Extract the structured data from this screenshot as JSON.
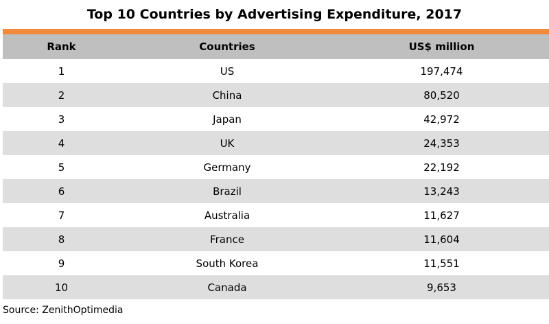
{
  "title": "Top 10 Countries by Advertising Expenditure, 2017",
  "accent_color": "#f28a3b",
  "header_color": "#bfbfbf",
  "stripe_color": "#dedede",
  "headers": {
    "rank": "Rank",
    "country": "Countries",
    "value": "US$ million"
  },
  "source": "Source: ZenithOptimedia",
  "chart_data": {
    "type": "table",
    "title": "Top 10 Countries by Advertising Expenditure, 2017",
    "columns": [
      "Rank",
      "Countries",
      "US$ million"
    ],
    "rows": [
      {
        "rank": "1",
        "country": "US",
        "value": "197,474"
      },
      {
        "rank": "2",
        "country": "China",
        "value": "80,520"
      },
      {
        "rank": "3",
        "country": "Japan",
        "value": "42,972"
      },
      {
        "rank": "4",
        "country": "UK",
        "value": "24,353"
      },
      {
        "rank": "5",
        "country": "Germany",
        "value": "22,192"
      },
      {
        "rank": "6",
        "country": "Brazil",
        "value": "13,243"
      },
      {
        "rank": "7",
        "country": "Australia",
        "value": "11,627"
      },
      {
        "rank": "8",
        "country": "France",
        "value": "11,604"
      },
      {
        "rank": "9",
        "country": "South Korea",
        "value": "11,551"
      },
      {
        "rank": "10",
        "country": "Canada",
        "value": "9,653"
      }
    ]
  }
}
